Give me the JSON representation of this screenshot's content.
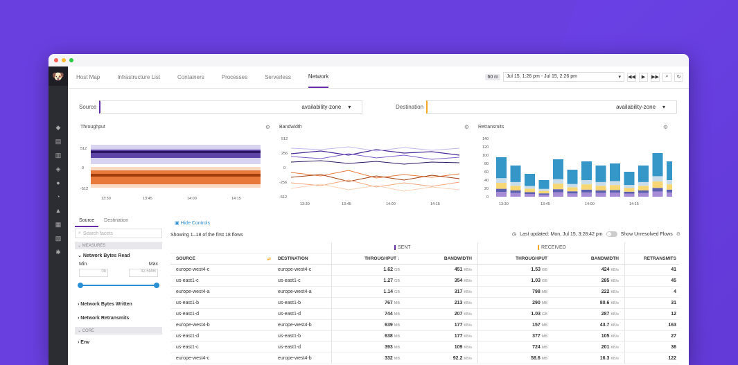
{
  "window": {
    "nav": [
      "Host Map",
      "Infrastructure List",
      "Containers",
      "Processes",
      "Serverless",
      "Network"
    ],
    "active_tab": "Network",
    "time_pill": "60 m",
    "time_range": "Jul 15, 1:26 pm - Jul 15, 2:26 pm"
  },
  "filters": {
    "source_label": "Source",
    "source_value": "availability-zone",
    "destination_label": "Destination",
    "destination_value": "availability-zone"
  },
  "charts": {
    "throughput": {
      "title": "Throughput",
      "y_ticks": [
        "512",
        "0",
        "-512"
      ],
      "x_ticks": [
        "13:30",
        "13:45",
        "14:00",
        "14:15"
      ]
    },
    "bandwidth": {
      "title": "Bandwidth",
      "y_ticks": [
        "512",
        "256",
        "0",
        "-256",
        "-512"
      ],
      "x_ticks": [
        "13:30",
        "13:45",
        "14:00",
        "14:15"
      ]
    },
    "retransmits": {
      "title": "Retransmits",
      "y_ticks": [
        "140",
        "120",
        "100",
        "80",
        "60",
        "40",
        "20",
        "0"
      ],
      "x_ticks": [
        "13:30",
        "13:45",
        "14:00",
        "14:15"
      ]
    }
  },
  "chart_data": [
    {
      "type": "area",
      "title": "Throughput",
      "ylim": [
        -512,
        512
      ],
      "series": [
        {
          "values": [
            200,
            250,
            300,
            220,
            280
          ]
        },
        {
          "values": [
            -180,
            -240,
            -300,
            -260,
            -220
          ]
        }
      ]
    },
    {
      "type": "line",
      "title": "Bandwidth",
      "ylim": [
        -512,
        512
      ],
      "series": [
        {
          "values": [
            300,
            350,
            330,
            370,
            320
          ]
        },
        {
          "values": [
            -200,
            -250,
            -180,
            -300,
            -260
          ]
        }
      ]
    },
    {
      "type": "bar",
      "title": "Retransmits",
      "ylim": [
        0,
        140
      ],
      "values": [
        95,
        75,
        55,
        40,
        90,
        65,
        85,
        75,
        80,
        60,
        75,
        105,
        85
      ]
    }
  ],
  "left": {
    "tabs": [
      "Source",
      "Destination"
    ],
    "search_placeholder": "Search facets",
    "measures": "MEASURES",
    "facet1": "Network Bytes Read",
    "min_label": "Min",
    "max_label": "Max",
    "min_value": "0b",
    "max_value": "42.5MiB",
    "facet2": "Network Bytes Written",
    "facet3": "Network Retransmits",
    "core": "CORE",
    "facet4": "Env"
  },
  "table_header": {
    "hide_controls": "Hide Controls",
    "showing": "Showing 1–18 of the first 18 flows",
    "last_updated": "Last updated: Mon, Jul 15, 3:28:42 pm",
    "show_unresolved": "Show Unresolved Flows",
    "sent": "SENT",
    "received": "RECEIVED",
    "cols": [
      "SOURCE",
      "DESTINATION",
      "THROUGHPUT ↓",
      "BANDWIDTH",
      "THROUGHPUT",
      "BANDWIDTH",
      "RETRANSMITS"
    ]
  },
  "rows": [
    [
      "europe-west4-c",
      "europe-west4-c",
      "1.62",
      "GB",
      "451",
      "KB/s",
      "1.53",
      "GB",
      "424",
      "KB/s",
      "41"
    ],
    [
      "us-east1-c",
      "us-east1-c",
      "1.27",
      "GB",
      "354",
      "KB/s",
      "1.03",
      "GB",
      "285",
      "KB/s",
      "45"
    ],
    [
      "europe-west4-a",
      "europe-west4-a",
      "1.14",
      "GB",
      "317",
      "KB/s",
      "798",
      "MB",
      "222",
      "KB/s",
      "4"
    ],
    [
      "us-east1-b",
      "us-east1-b",
      "767",
      "MB",
      "213",
      "KB/s",
      "290",
      "MB",
      "80.6",
      "KB/s",
      "31"
    ],
    [
      "us-east1-d",
      "us-east1-d",
      "744",
      "MB",
      "207",
      "KB/s",
      "1.03",
      "GB",
      "287",
      "KB/s",
      "12"
    ],
    [
      "europe-west4-b",
      "europe-west4-b",
      "639",
      "MB",
      "177",
      "KB/s",
      "157",
      "MB",
      "43.7",
      "KB/s",
      "163"
    ],
    [
      "us-east1-d",
      "us-east1-b",
      "638",
      "MB",
      "177",
      "KB/s",
      "377",
      "MB",
      "105",
      "KB/s",
      "27"
    ],
    [
      "us-east1-c",
      "us-east1-d",
      "393",
      "MB",
      "109",
      "KB/s",
      "724",
      "MB",
      "201",
      "KB/s",
      "36"
    ],
    [
      "europe-west4-c",
      "europe-west4-b",
      "332",
      "MB",
      "92.2",
      "KB/s",
      "58.6",
      "MB",
      "16.3",
      "KB/s",
      "122"
    ]
  ]
}
